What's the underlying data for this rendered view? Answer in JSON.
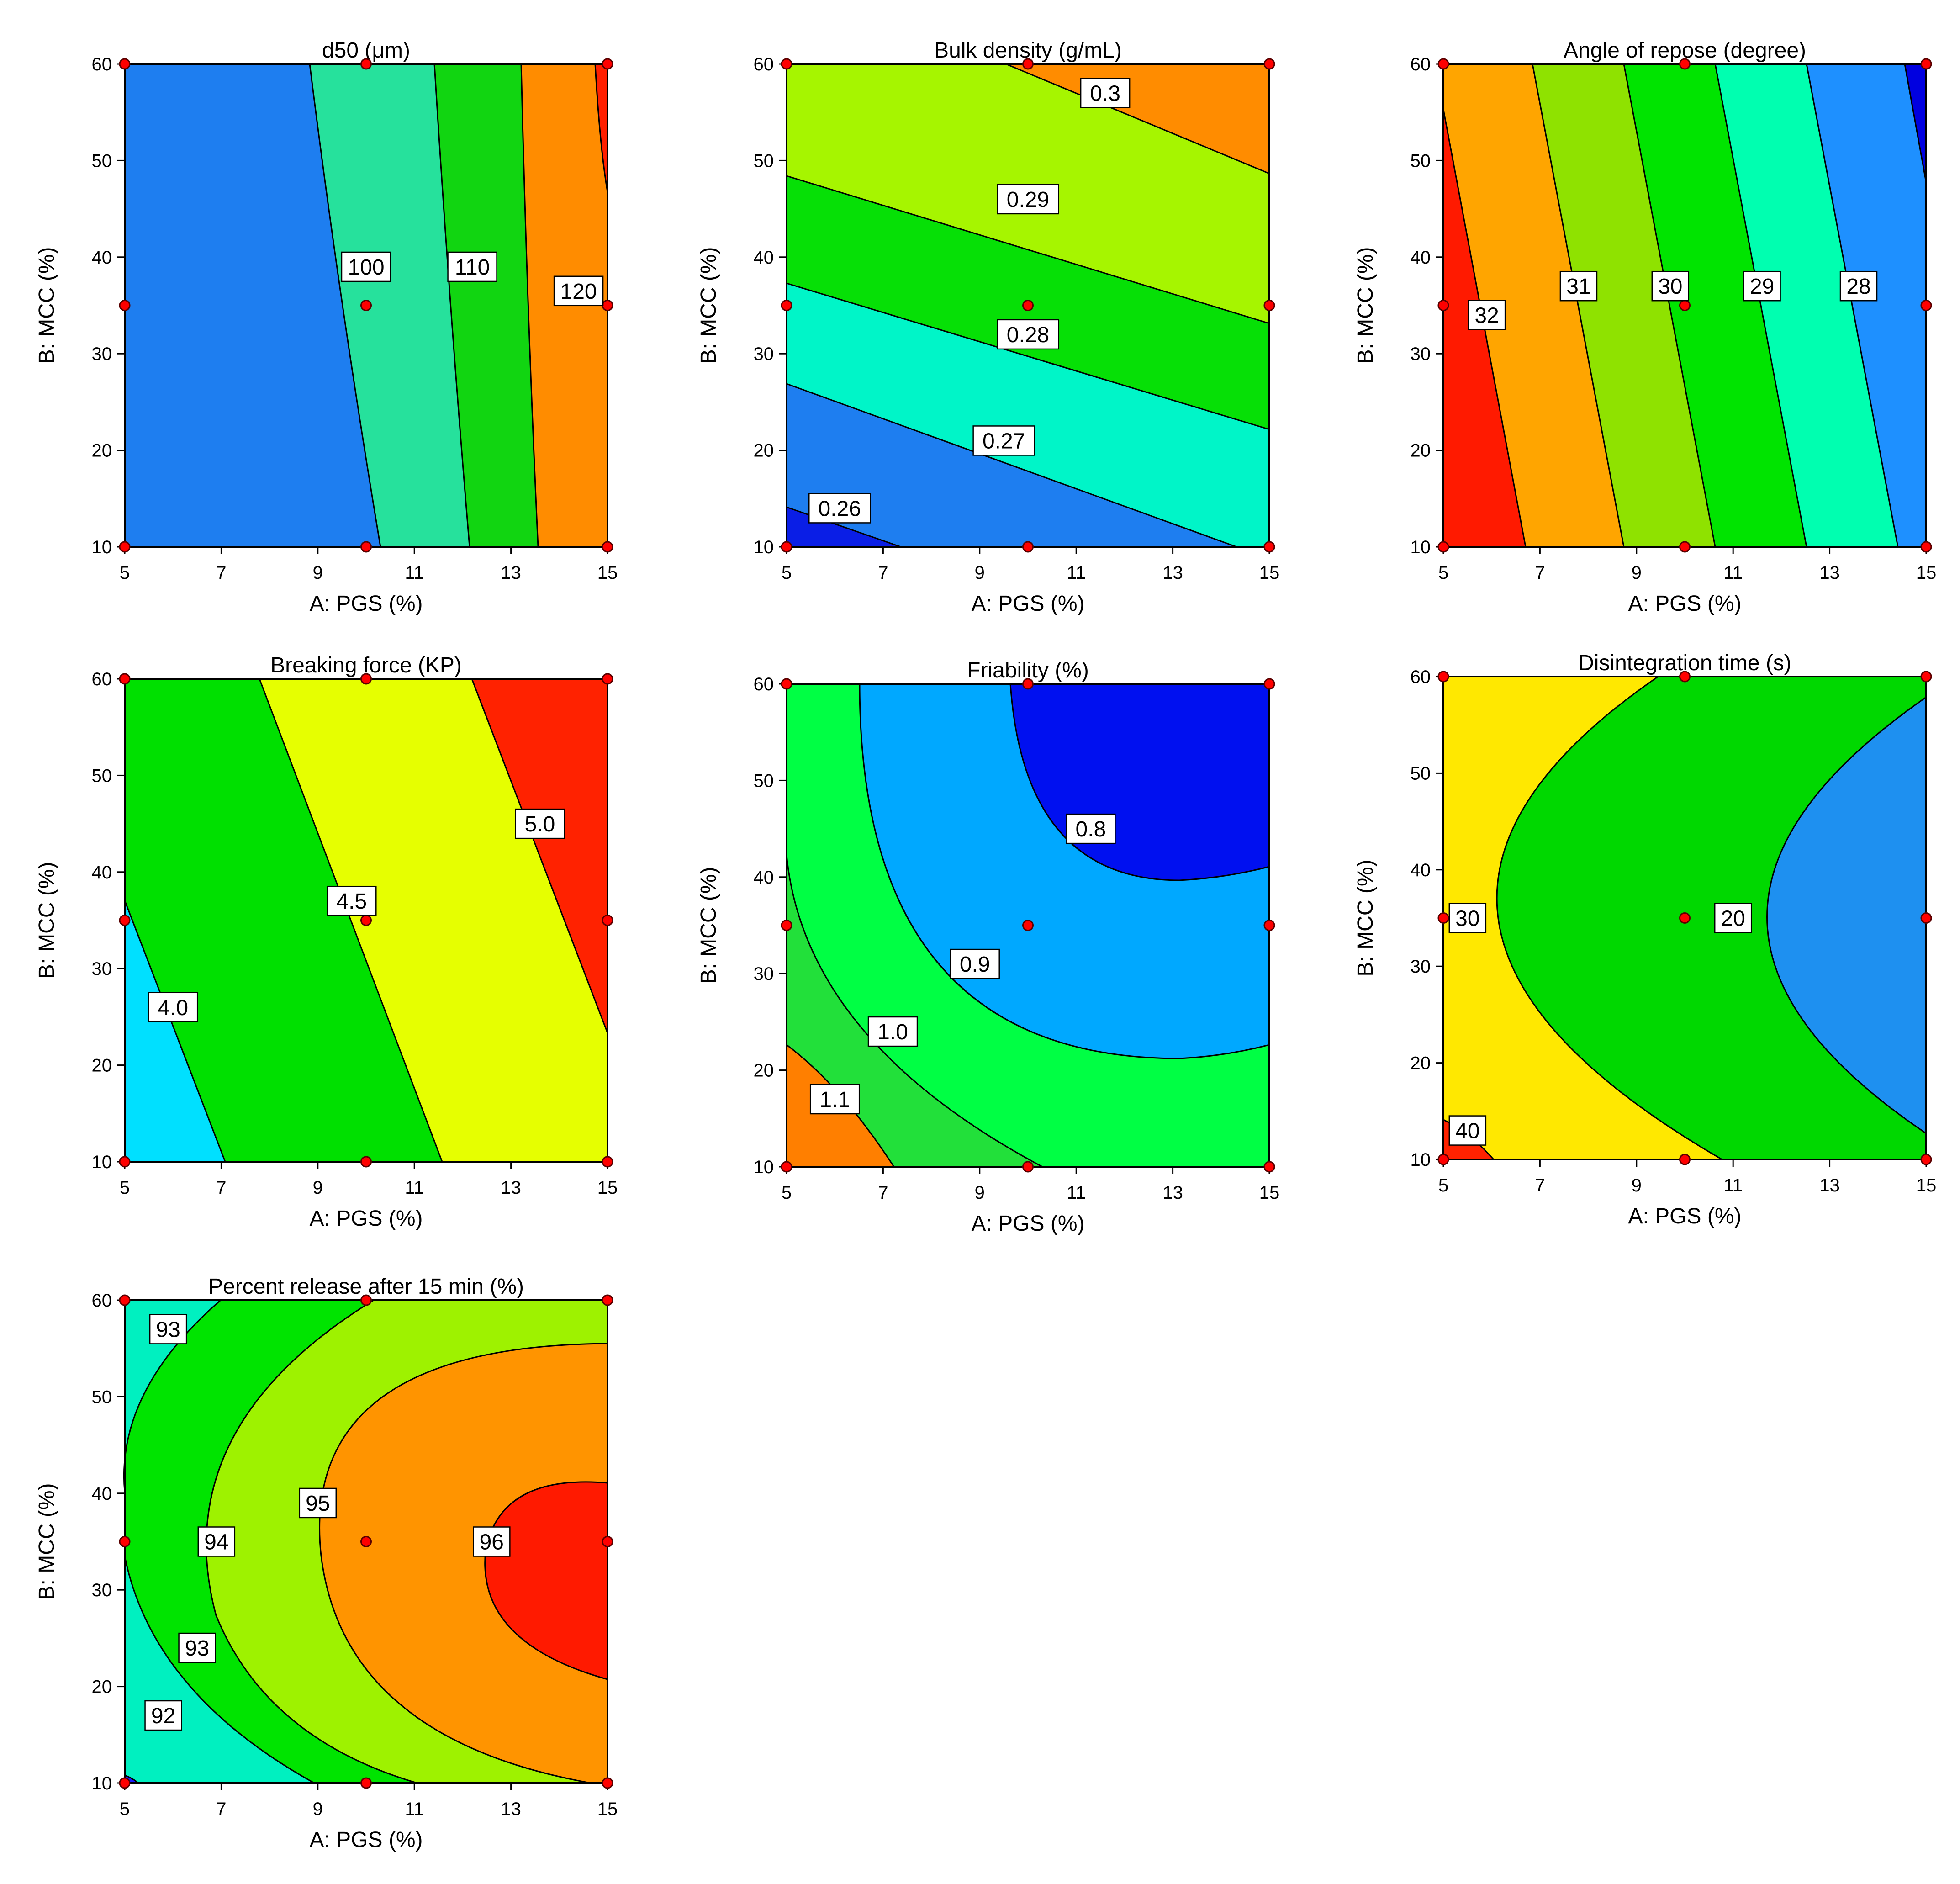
{
  "chart_data": [
    {
      "type": "contour",
      "title": "d50 (μm)",
      "xlabel": "A: PGS (%)",
      "ylabel": "B: MCC (%)",
      "xlim": [
        5,
        15
      ],
      "ylim": [
        10,
        60
      ],
      "xticks": [
        "5",
        "7",
        "9",
        "11",
        "13",
        "15"
      ],
      "yticks": [
        "10",
        "20",
        "30",
        "40",
        "50",
        "60"
      ],
      "contour_levels": [
        {
          "value": "100",
          "label_at": [
            10.0,
            39
          ]
        },
        {
          "value": "110",
          "label_at": [
            12.2,
            39
          ]
        },
        {
          "value": "120",
          "label_at": [
            14.4,
            36.5
          ]
        }
      ],
      "bands": [
        {
          "range": "<100",
          "color": "#1e7ef0"
        },
        {
          "range": "100–110",
          "color": "#26e19c"
        },
        {
          "range": "110–120",
          "color": "#11d511"
        },
        {
          "range": "120–130",
          "color": "#ff8c00"
        },
        {
          "range": ">130",
          "color": "#ff1f00"
        }
      ],
      "design_points": [
        [
          5,
          10
        ],
        [
          5,
          35
        ],
        [
          5,
          60
        ],
        [
          10,
          10
        ],
        [
          10,
          35
        ],
        [
          10,
          60
        ],
        [
          15,
          10
        ],
        [
          15,
          35
        ],
        [
          15,
          60
        ]
      ]
    },
    {
      "type": "contour",
      "title": "Bulk density (g/mL)",
      "xlabel": "A: PGS (%)",
      "ylabel": "B: MCC (%)",
      "xlim": [
        5,
        15
      ],
      "ylim": [
        10,
        60
      ],
      "xticks": [
        "5",
        "7",
        "9",
        "11",
        "13",
        "15"
      ],
      "yticks": [
        "10",
        "20",
        "30",
        "40",
        "50",
        "60"
      ],
      "contour_levels": [
        {
          "value": "0.26",
          "label_at": [
            6.1,
            14
          ]
        },
        {
          "value": "0.27",
          "label_at": [
            9.5,
            21
          ]
        },
        {
          "value": "0.28",
          "label_at": [
            10.0,
            32
          ]
        },
        {
          "value": "0.29",
          "label_at": [
            10.0,
            46
          ]
        },
        {
          "value": "0.3",
          "label_at": [
            11.6,
            57
          ]
        }
      ],
      "bands": [
        {
          "range": "<0.26",
          "color": "#0a1ee6"
        },
        {
          "range": "0.26–0.27",
          "color": "#1e7ef0"
        },
        {
          "range": "0.27–0.28",
          "color": "#00f5c8"
        },
        {
          "range": "0.28–0.29",
          "color": "#06e006"
        },
        {
          "range": "0.29–0.30",
          "color": "#a6f500"
        },
        {
          "range": ">0.30",
          "color": "#ff8c00"
        }
      ],
      "design_points": [
        [
          5,
          10
        ],
        [
          5,
          35
        ],
        [
          5,
          60
        ],
        [
          10,
          10
        ],
        [
          10,
          35
        ],
        [
          10,
          60
        ],
        [
          15,
          10
        ],
        [
          15,
          35
        ],
        [
          15,
          60
        ]
      ]
    },
    {
      "type": "contour",
      "title": "Angle of repose (degree)",
      "xlabel": "A: PGS (%)",
      "ylabel": "B: MCC (%)",
      "xlim": [
        5,
        15
      ],
      "ylim": [
        10,
        60
      ],
      "xticks": [
        "5",
        "7",
        "9",
        "11",
        "13",
        "15"
      ],
      "yticks": [
        "10",
        "20",
        "30",
        "40",
        "50",
        "60"
      ],
      "contour_levels": [
        {
          "value": "32",
          "label_at": [
            5.9,
            34
          ]
        },
        {
          "value": "31",
          "label_at": [
            7.8,
            37
          ]
        },
        {
          "value": "30",
          "label_at": [
            9.7,
            37
          ]
        },
        {
          "value": "29",
          "label_at": [
            11.6,
            37
          ]
        },
        {
          "value": "28",
          "label_at": [
            13.6,
            37
          ]
        }
      ],
      "bands": [
        {
          "range": ">32",
          "color": "#ff1a00"
        },
        {
          "range": "31–32",
          "color": "#ffa500"
        },
        {
          "range": "30–31",
          "color": "#8fe200"
        },
        {
          "range": "29–30",
          "color": "#00e400"
        },
        {
          "range": "28–29",
          "color": "#00ffb0"
        },
        {
          "range": "27–28",
          "color": "#1e90ff"
        },
        {
          "range": "<27",
          "color": "#0000e0"
        }
      ],
      "design_points": [
        [
          5,
          10
        ],
        [
          5,
          35
        ],
        [
          5,
          60
        ],
        [
          10,
          10
        ],
        [
          10,
          35
        ],
        [
          10,
          60
        ],
        [
          15,
          10
        ],
        [
          15,
          35
        ],
        [
          15,
          60
        ]
      ]
    },
    {
      "type": "contour",
      "title": "Breaking force (KP)",
      "xlabel": "A: PGS (%)",
      "ylabel": "B: MCC (%)",
      "xlim": [
        5,
        15
      ],
      "ylim": [
        10,
        60
      ],
      "xticks": [
        "5",
        "7",
        "9",
        "11",
        "13",
        "15"
      ],
      "yticks": [
        "10",
        "20",
        "30",
        "40",
        "50",
        "60"
      ],
      "contour_levels": [
        {
          "value": "4.0",
          "label_at": [
            6.0,
            26
          ]
        },
        {
          "value": "4.5",
          "label_at": [
            9.7,
            37
          ]
        },
        {
          "value": "5.0",
          "label_at": [
            13.6,
            45
          ]
        }
      ],
      "bands": [
        {
          "range": "<4.0",
          "color": "#00e0ff"
        },
        {
          "range": "4.0–4.5",
          "color": "#00e000"
        },
        {
          "range": "4.5–5.0",
          "color": "#e6ff00"
        },
        {
          "range": ">5.0",
          "color": "#ff2200"
        }
      ],
      "design_points": [
        [
          5,
          10
        ],
        [
          5,
          35
        ],
        [
          5,
          60
        ],
        [
          10,
          10
        ],
        [
          10,
          35
        ],
        [
          10,
          60
        ],
        [
          15,
          10
        ],
        [
          15,
          35
        ],
        [
          15,
          60
        ]
      ]
    },
    {
      "type": "contour",
      "title": "Friability (%)",
      "xlabel": "A: PGS (%)",
      "ylabel": "B: MCC (%)",
      "xlim": [
        5,
        15
      ],
      "ylim": [
        10,
        60
      ],
      "xticks": [
        "5",
        "7",
        "9",
        "11",
        "13",
        "15"
      ],
      "yticks": [
        "10",
        "20",
        "30",
        "40",
        "50",
        "60"
      ],
      "contour_levels": [
        {
          "value": "1.1",
          "label_at": [
            6.0,
            17
          ]
        },
        {
          "value": "1.0",
          "label_at": [
            7.2,
            24
          ]
        },
        {
          "value": "0.9",
          "label_at": [
            8.9,
            31
          ]
        },
        {
          "value": "0.8",
          "label_at": [
            11.3,
            45
          ]
        }
      ],
      "bands": [
        {
          "range": ">1.1",
          "color": "#ff7f00"
        },
        {
          "range": "1.0–1.1",
          "color": "#22e03a"
        },
        {
          "range": "0.9–1.0",
          "color": "#00ff44"
        },
        {
          "range": "0.8–0.9",
          "color": "#00a8ff"
        },
        {
          "range": "<0.8",
          "color": "#0010f0"
        }
      ],
      "design_points": [
        [
          5,
          10
        ],
        [
          5,
          35
        ],
        [
          5,
          60
        ],
        [
          10,
          10
        ],
        [
          10,
          35
        ],
        [
          10,
          60
        ],
        [
          15,
          10
        ],
        [
          15,
          35
        ],
        [
          15,
          60
        ]
      ]
    },
    {
      "type": "contour",
      "title": "Disintegration time  (s)",
      "xlabel": "A: PGS (%)",
      "ylabel": "B: MCC (%)",
      "xlim": [
        5,
        15
      ],
      "ylim": [
        10,
        60
      ],
      "xticks": [
        "5",
        "7",
        "9",
        "11",
        "13",
        "15"
      ],
      "yticks": [
        "10",
        "20",
        "30",
        "40",
        "50",
        "60"
      ],
      "contour_levels": [
        {
          "value": "40",
          "label_at": [
            5.5,
            13
          ]
        },
        {
          "value": "30",
          "label_at": [
            5.5,
            35
          ]
        },
        {
          "value": "20",
          "label_at": [
            11.0,
            35
          ]
        }
      ],
      "bands": [
        {
          "range": ">40",
          "color": "#ff2200"
        },
        {
          "range": "30–40",
          "color": "#ffe800"
        },
        {
          "range": "20–30",
          "color": "#00d800"
        },
        {
          "range": "<20",
          "color": "#1e90f0"
        }
      ],
      "design_points": [
        [
          5,
          10
        ],
        [
          5,
          35
        ],
        [
          5,
          60
        ],
        [
          10,
          10
        ],
        [
          10,
          35
        ],
        [
          10,
          60
        ],
        [
          15,
          10
        ],
        [
          15,
          35
        ],
        [
          15,
          60
        ]
      ]
    },
    {
      "type": "contour",
      "title": "Percent release after 15 min (%)",
      "xlabel": "A: PGS (%)",
      "ylabel": "B: MCC (%)",
      "xlim": [
        5,
        15
      ],
      "ylim": [
        10,
        60
      ],
      "xticks": [
        "5",
        "7",
        "9",
        "11",
        "13",
        "15"
      ],
      "yticks": [
        "10",
        "20",
        "30",
        "40",
        "50",
        "60"
      ],
      "contour_levels": [
        {
          "value": "93",
          "label_at": [
            5.9,
            57
          ]
        },
        {
          "value": "95",
          "label_at": [
            9.0,
            39
          ]
        },
        {
          "value": "94",
          "label_at": [
            6.9,
            35
          ]
        },
        {
          "value": "96",
          "label_at": [
            12.6,
            35
          ]
        },
        {
          "value": "93",
          "label_at": [
            6.5,
            24
          ]
        },
        {
          "value": "92",
          "label_at": [
            5.8,
            17
          ]
        }
      ],
      "bands": [
        {
          "range": "<92",
          "color": "#1a1aff"
        },
        {
          "range": "92–93",
          "color": "#00f0c0"
        },
        {
          "range": "93–94",
          "color": "#00e400"
        },
        {
          "range": "94–95",
          "color": "#9ef200"
        },
        {
          "range": "95–96",
          "color": "#ff9400"
        },
        {
          "range": ">96",
          "color": "#ff1a00"
        }
      ],
      "design_points": [
        [
          5,
          10
        ],
        [
          5,
          35
        ],
        [
          5,
          60
        ],
        [
          10,
          10
        ],
        [
          10,
          35
        ],
        [
          10,
          60
        ],
        [
          15,
          10
        ],
        [
          15,
          35
        ],
        [
          15,
          60
        ]
      ]
    }
  ]
}
